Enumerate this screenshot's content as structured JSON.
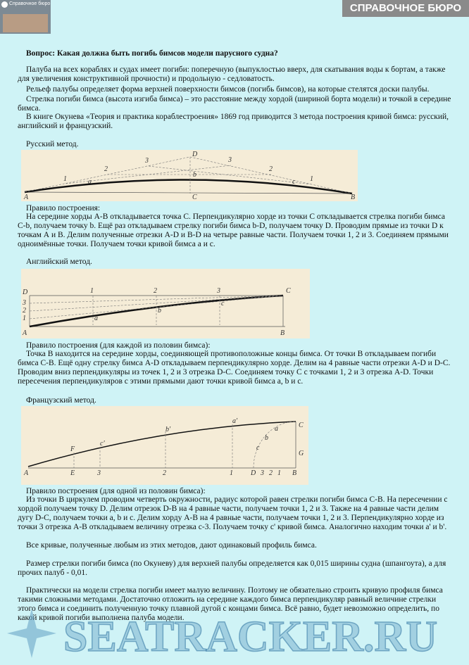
{
  "header": {
    "logo_title": "Справочное бюро",
    "banner": "СПРАВОЧНОЕ БЮРО"
  },
  "question": "Вопрос: Какая должна быть погибь бимсов модели парусного судна?",
  "intro": [
    "Палуба на всех кораблях и судах имеет погиби: поперечную (выпуклостью вверх, для скатывания воды к бортам, а также для увеличения конструктивной прочности) и продольную - седловатость.",
    "Рельеф палубы определяет форма верхней поверхности бимсов (погибь бимсов), на которые стелятся доски палубы.",
    "Стрелка погиби бимса (высота изгиба бимса) – это расстояние между хордой (шириной борта модели) и точкой в середине бимса.",
    "В книге Окунева «Теория и практика кораблестроения» 1869 год приводится 3 метода построения кривой бимса: русский, английский и французский."
  ],
  "methods": [
    {
      "title": "Русский метод.",
      "figure_labels": [
        "A",
        "B",
        "C",
        "D",
        "b",
        "1",
        "2",
        "3",
        "1",
        "2",
        "3",
        "a",
        "c"
      ],
      "rule_title": "Правило построения:",
      "rule": "На середине хорды А-В откладывается точка С. Перпендикулярно хорде из точки С откладывается стрелка погиби бимса С-b, получаем точку b. Ещё раз откладываем стрелку погиби бимса b-D, получаем точку D. Проводим прямые из точки D к точкам А и В. Делим полученные отрезки A-D и B-D на четыре равные части. Получаем точки 1, 2 и 3. Соединяем прямыми одноимённые точки. Получаем точки кривой бимса a и c."
    },
    {
      "title": "Английский метод.",
      "figure_labels": [
        "D",
        "3",
        "2",
        "1",
        "A",
        "B",
        "C",
        "1",
        "2",
        "3",
        "a",
        "b",
        "c"
      ],
      "rule_title": "Правило построения (для каждой из половин бимса):",
      "rule": "Точка В находится на середине хорды, соединяющей противоположные концы бимса. От точки В откладываем погиби бимса С-В. Ещё одну стрелку бимса A-D откладываем перпендикулярно хорде. Делим на 4 равные части отрезки A-D и D-C. Проводим вниз перпендикуляры из точек 1, 2 и 3 отрезка D-C. Соединяем точку С с точками 1, 2 и 3 отрезка A-D. Точки пересечения перпендикуляров с этими прямыми дают точки кривой бимса a, b и c."
    },
    {
      "title": "Французский метод.",
      "figure_labels": [
        "A",
        "E",
        "3",
        "2",
        "1",
        "D",
        "3",
        "2",
        "1",
        "B",
        "F",
        "c'",
        "b'",
        "a'",
        "C",
        "G",
        "c",
        "b",
        "a"
      ],
      "rule_title": "Правило построения (для одной из половин бимса):",
      "rule": "Из точки В циркулем проводим четверть окружности, радиус которой равен стрелки погиби бимса С-В. На пересечении с хордой получаем точку D. Делим отрезок D-B на 4 равные части, получаем точки 1, 2 и 3. Также на 4 равные части делим дугу D-C, получаем точки a, b и c. Делим хорду А-В на 4 равные части, получаем точки 1, 2 и 3. Перпендикулярно хорде из точки 3 отрезка А-В откладываем величину отрезка с-3. Получаем точку с' кривой бимса. Аналогично находим точки a' и b'."
    }
  ],
  "conclusion": [
    "Все кривые, полученные любым из этих методов, дают одинаковый профиль бимса.",
    "Размер стрелки погиби бимса (по Окуневу) для верхней палубы определяется как 0,015 ширины судна (шпангоута), а для прочих палуб - 0,01.",
    "Практически на модели стрелка погиби имеет малую величину. Поэтому не обязательно строить кривую профиля бимса такими сложными методами. Достаточно отложить на середине каждого бимса перпендикуляр равный величине стрелки этого бимса и соединить полученную точку плавной дугой с концами бимса. Всё равно, будет невозможно определить, по какой кривой погиби выполнена палуба модели."
  ],
  "watermark": "SEATRACKER.RU"
}
